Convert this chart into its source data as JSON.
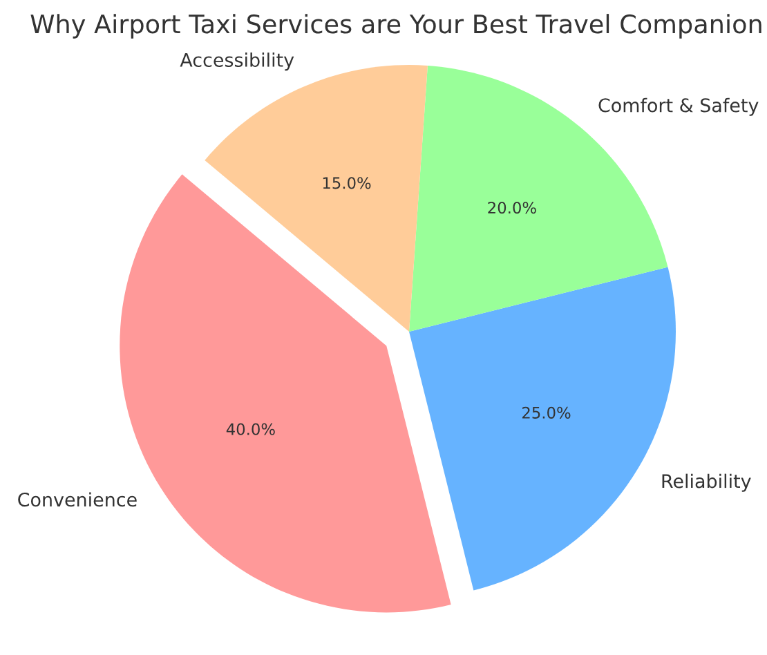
{
  "chart_data": {
    "type": "pie",
    "title": "Why Airport Taxi Services are Your Best Travel Companion",
    "categories": [
      "Convenience",
      "Reliability",
      "Comfort & Safety",
      "Accessibility"
    ],
    "values": [
      40,
      25,
      20,
      15
    ],
    "colors": [
      "#ff9999",
      "#66b3ff",
      "#99ff99",
      "#ffcc99"
    ],
    "value_labels": [
      "40.0%",
      "25.0%",
      "20.0%",
      "15.0%"
    ]
  }
}
